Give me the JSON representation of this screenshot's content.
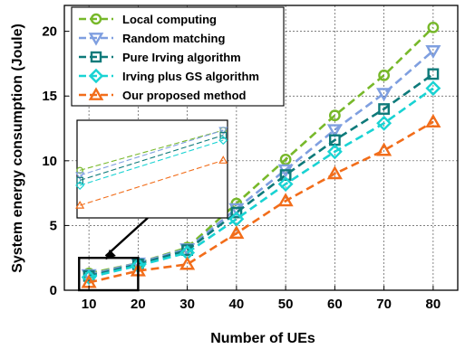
{
  "chart_data": {
    "type": "line",
    "title": "",
    "xlabel": "Number of UEs",
    "ylabel": "System energy consumption (Joule)",
    "x": [
      10,
      20,
      30,
      40,
      50,
      60,
      70,
      80
    ],
    "xticks": [
      "10",
      "20",
      "30",
      "40",
      "50",
      "60",
      "70",
      "80"
    ],
    "yticks": [
      "0",
      "5",
      "10",
      "15",
      "20"
    ],
    "xlim": [
      5,
      85
    ],
    "ylim": [
      0,
      22
    ],
    "grid": true,
    "legend_position": "top-left",
    "inset": {
      "zoom_region_x": [
        8,
        20
      ],
      "zoom_region_y": [
        0,
        2.5
      ]
    },
    "series": [
      {
        "name": "Local computing",
        "marker": "circle",
        "color": "#77b82a",
        "values": [
          1.3,
          2.1,
          3.3,
          6.7,
          10.1,
          13.5,
          16.6,
          20.3
        ]
      },
      {
        "name": "Random matching",
        "marker": "triangle-down",
        "color": "#7f9fe0",
        "values": [
          1.2,
          2.1,
          3.2,
          6.3,
          9.3,
          12.4,
          15.2,
          18.5
        ]
      },
      {
        "name": "Pure Irving algorithm",
        "marker": "square",
        "color": "#0e7a7a",
        "values": [
          1.1,
          2.0,
          3.1,
          6.0,
          8.9,
          11.6,
          14.0,
          16.7
        ]
      },
      {
        "name": "Irving plus GS algorithm",
        "marker": "diamond",
        "color": "#19d3d3",
        "values": [
          1.0,
          1.9,
          2.9,
          5.5,
          8.2,
          10.7,
          12.9,
          15.6
        ]
      },
      {
        "name": "Our proposed method",
        "marker": "triangle-up",
        "color": "#f26d1a",
        "values": [
          0.6,
          1.5,
          2.0,
          4.4,
          6.9,
          9.0,
          10.8,
          13.0
        ]
      }
    ]
  }
}
